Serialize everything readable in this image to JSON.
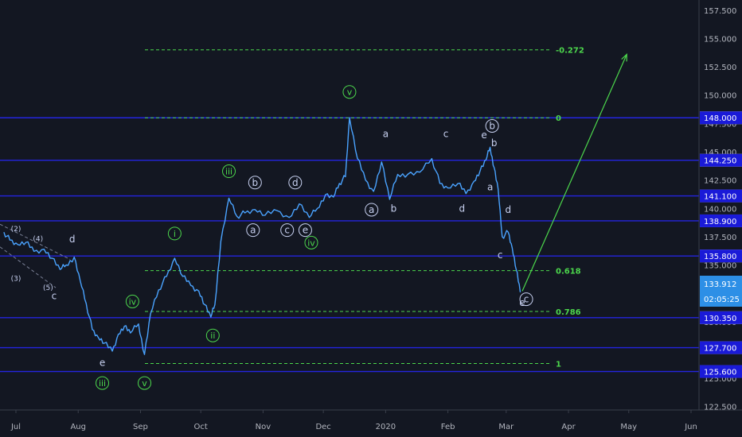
{
  "chart_data": {
    "type": "line",
    "title": "",
    "xlabel": "",
    "ylabel": "",
    "x_ticks": [
      "Jul",
      "Aug",
      "Sep",
      "Oct",
      "Nov",
      "Dec",
      "2020",
      "Feb",
      "Mar",
      "Apr",
      "May",
      "Jun"
    ],
    "y_ticks": [
      "122.500",
      "125.000",
      "127.500",
      "130.000",
      "132.500",
      "135.000",
      "137.500",
      "140.000",
      "142.500",
      "145.000",
      "147.500",
      "150.000",
      "152.500",
      "155.000",
      "157.500"
    ],
    "ylim": [
      122.2,
      158.4
    ],
    "grid": false,
    "series": [
      {
        "color": "#4aa3ff",
        "points": [
          [
            "2019-06-25",
            137.9
          ],
          [
            "2019-06-28",
            137.2
          ],
          [
            "2019-07-02",
            136.8
          ],
          [
            "2019-07-06",
            137.0
          ],
          [
            "2019-07-10",
            136.2
          ],
          [
            "2019-07-15",
            136.4
          ],
          [
            "2019-07-19",
            135.6
          ],
          [
            "2019-07-23",
            134.6
          ],
          [
            "2019-07-26",
            135.0
          ],
          [
            "2019-07-30",
            135.7
          ],
          [
            "2019-08-02",
            133.6
          ],
          [
            "2019-08-05",
            131.6
          ],
          [
            "2019-08-08",
            129.3
          ],
          [
            "2019-08-11",
            128.6
          ],
          [
            "2019-08-14",
            128.1
          ],
          [
            "2019-08-18",
            127.4
          ],
          [
            "2019-08-21",
            128.9
          ],
          [
            "2019-08-24",
            129.6
          ],
          [
            "2019-08-27",
            129.0
          ],
          [
            "2019-08-31",
            129.8
          ],
          [
            "2019-09-03",
            127.1
          ],
          [
            "2019-09-06",
            130.7
          ],
          [
            "2019-09-10",
            132.8
          ],
          [
            "2019-09-14",
            134.0
          ],
          [
            "2019-09-18",
            135.6
          ],
          [
            "2019-09-22",
            134.0
          ],
          [
            "2019-09-26",
            133.2
          ],
          [
            "2019-09-30",
            132.7
          ],
          [
            "2019-10-03",
            131.5
          ],
          [
            "2019-10-06",
            130.4
          ],
          [
            "2019-10-08",
            131.5
          ],
          [
            "2019-10-11",
            137.1
          ],
          [
            "2019-10-15",
            140.9
          ],
          [
            "2019-10-19",
            139.3
          ],
          [
            "2019-10-23",
            139.6
          ],
          [
            "2019-10-28",
            139.9
          ],
          [
            "2019-11-02",
            139.4
          ],
          [
            "2019-11-08",
            139.8
          ],
          [
            "2019-11-14",
            139.2
          ],
          [
            "2019-11-19",
            140.4
          ],
          [
            "2019-11-24",
            139.2
          ],
          [
            "2019-11-28",
            140.0
          ],
          [
            "2019-12-02",
            141.2
          ],
          [
            "2019-12-06",
            141.0
          ],
          [
            "2019-12-09",
            142.2
          ],
          [
            "2019-12-12",
            142.8
          ],
          [
            "2019-12-14",
            148.0
          ],
          [
            "2019-12-18",
            144.4
          ],
          [
            "2019-12-22",
            142.5
          ],
          [
            "2019-12-26",
            141.5
          ],
          [
            "2019-12-30",
            144.1
          ],
          [
            "2020-01-03",
            140.8
          ],
          [
            "2020-01-07",
            143.0
          ],
          [
            "2020-01-12",
            143.0
          ],
          [
            "2020-01-18",
            143.2
          ],
          [
            "2020-01-24",
            144.4
          ],
          [
            "2020-01-28",
            142.2
          ],
          [
            "2020-02-01",
            141.8
          ],
          [
            "2020-02-06",
            142.2
          ],
          [
            "2020-02-10",
            141.3
          ],
          [
            "2020-02-14",
            142.4
          ],
          [
            "2020-02-17",
            143.3
          ],
          [
            "2020-02-20",
            144.3
          ],
          [
            "2020-02-22",
            145.4
          ],
          [
            "2020-02-24",
            143.6
          ],
          [
            "2020-02-26",
            141.7
          ],
          [
            "2020-02-28",
            137.5
          ],
          [
            "2020-03-02",
            137.9
          ],
          [
            "2020-03-04",
            136.5
          ],
          [
            "2020-03-06",
            134.6
          ],
          [
            "2020-03-08",
            132.6
          ]
        ]
      }
    ],
    "levels": [
      {
        "value": 148.0,
        "label": "148.000"
      },
      {
        "value": 144.25,
        "label": "144.250"
      },
      {
        "value": 141.1,
        "label": "141.100"
      },
      {
        "value": 138.9,
        "label": "138.900"
      },
      {
        "value": 135.8,
        "label": "135.800"
      },
      {
        "value": 130.35,
        "label": "130.350"
      },
      {
        "value": 127.7,
        "label": "127.700"
      },
      {
        "value": 125.6,
        "label": "125.600"
      }
    ],
    "fib_levels": [
      {
        "value": 154.0,
        "label": "-0.272"
      },
      {
        "value": 148.0,
        "label": "0"
      },
      {
        "value": 134.5,
        "label": "0.618"
      },
      {
        "value": 130.9,
        "label": "0.786"
      },
      {
        "value": 126.3,
        "label": "1"
      }
    ],
    "projection": {
      "from": [
        "2020-03-09",
        132.7
      ],
      "to": [
        "2020-04-30",
        153.6
      ]
    },
    "last_price": "133.912",
    "countdown": "02:05:25",
    "wave_labels": [
      {
        "t": "(2)",
        "d": "2019-07-01",
        "v": 138.0
      },
      {
        "t": "(4)",
        "d": "2019-07-12",
        "v": 137.1
      },
      {
        "t": "(3)",
        "d": "2019-07-01",
        "v": 133.6
      },
      {
        "t": "(5)",
        "d": "2019-07-17",
        "v": 132.8
      },
      {
        "t": "d",
        "d": "2019-07-29",
        "v": 137.0
      },
      {
        "t": "c",
        "d": "2019-07-20",
        "v": 132.0
      },
      {
        "t": "e",
        "d": "2019-08-13",
        "v": 126.1
      },
      {
        "t": "iii",
        "d": "2019-08-13",
        "v": 124.3
      },
      {
        "t": "iv",
        "d": "2019-08-28",
        "v": 131.5
      },
      {
        "t": "v",
        "d": "2019-09-03",
        "v": 124.3
      },
      {
        "t": "i",
        "d": "2019-09-18",
        "v": 137.5
      },
      {
        "t": "ii",
        "d": "2019-10-07",
        "v": 128.5
      },
      {
        "t": "iii",
        "d": "2019-10-15",
        "v": 143.0
      },
      {
        "t": "b",
        "d": "2019-10-28",
        "v": 142.0
      },
      {
        "t": "d",
        "d": "2019-11-17",
        "v": 142.0
      },
      {
        "t": "a",
        "d": "2019-10-27",
        "v": 137.8
      },
      {
        "t": "c",
        "d": "2019-11-13",
        "v": 137.8
      },
      {
        "t": "e",
        "d": "2019-11-22",
        "v": 137.8
      },
      {
        "t": "iv",
        "d": "2019-11-25",
        "v": 136.7
      },
      {
        "t": "v",
        "d": "2019-12-14",
        "v": 150.0
      },
      {
        "t": "a",
        "d": "2020-01-01",
        "v": 146.3
      },
      {
        "t": "c",
        "d": "2020-01-31",
        "v": 146.3
      },
      {
        "t": "e",
        "d": "2020-02-19",
        "v": 146.2
      },
      {
        "t": "b",
        "d": "2020-02-23",
        "v": 147.0
      },
      {
        "t": "b",
        "d": "2020-02-24",
        "v": 145.5
      },
      {
        "t": "a",
        "d": "2019-12-25",
        "v": 139.6
      },
      {
        "t": "b",
        "d": "2020-01-05",
        "v": 139.7
      },
      {
        "t": "d",
        "d": "2020-02-08",
        "v": 139.7
      },
      {
        "t": "a",
        "d": "2020-02-22",
        "v": 141.6
      },
      {
        "t": "d",
        "d": "2020-03-02",
        "v": 139.6
      },
      {
        "t": "c",
        "d": "2020-02-27",
        "v": 135.6
      },
      {
        "t": "e",
        "d": "2020-03-09",
        "v": 131.4
      },
      {
        "t": "c",
        "d": "2020-03-11",
        "v": 131.7
      }
    ]
  }
}
